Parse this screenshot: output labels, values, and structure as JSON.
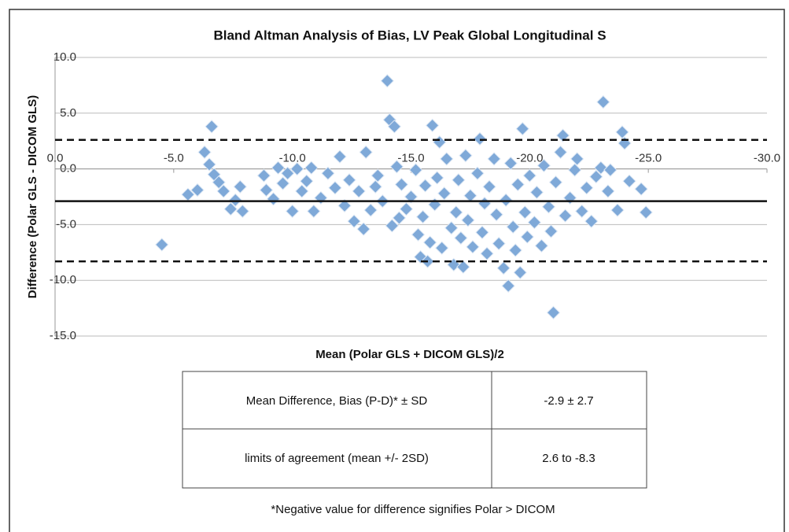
{
  "chart_data": {
    "type": "scatter",
    "title": "Bland Altman Analysis of Bias, LV Peak Global Longitudinal S",
    "x_label": "Mean (Polar GLS + DICOM GLS)/2",
    "y_label": "Difference (Polar GLS - DICOM GLS)",
    "color": "#7fa9d8",
    "xlim": [
      0,
      -30
    ],
    "ylim": [
      -15,
      10
    ],
    "xticks": [
      {
        "value": 0,
        "label": "0.0"
      },
      {
        "value": -5,
        "label": "-5.0"
      },
      {
        "value": -10,
        "label": "-10.0"
      },
      {
        "value": -15,
        "label": "-15.0"
      },
      {
        "value": -20,
        "label": "-20.0"
      },
      {
        "value": -25,
        "label": "-25.0"
      },
      {
        "value": -30,
        "label": "-30.0"
      }
    ],
    "yticks": [
      {
        "value": -15,
        "label": "-15.0"
      },
      {
        "value": -10,
        "label": "-10.0"
      },
      {
        "value": -5,
        "label": "-5.0"
      },
      {
        "value": 0,
        "label": "0.0"
      },
      {
        "value": 5,
        "label": "5.0"
      },
      {
        "value": 10,
        "label": "10.0"
      }
    ],
    "grid": true,
    "reference_lines": [
      {
        "value": -2.9,
        "style": "solid"
      },
      {
        "value": 2.6,
        "style": "dashed"
      },
      {
        "value": -8.3,
        "style": "dashed"
      }
    ],
    "x": [
      -4.5,
      -5.6,
      -6.0,
      -6.3,
      -6.5,
      -6.6,
      -6.7,
      -6.9,
      -7.1,
      -7.4,
      -7.6,
      -7.8,
      -7.9,
      -8.8,
      -8.9,
      -9.2,
      -9.4,
      -9.6,
      -9.8,
      -10.0,
      -10.2,
      -10.4,
      -10.6,
      -10.8,
      -10.9,
      -11.2,
      -11.5,
      -11.8,
      -12.0,
      -12.2,
      -12.4,
      -12.6,
      -12.8,
      -13.0,
      -13.1,
      -13.3,
      -13.5,
      -13.6,
      -13.8,
      -14.0,
      -14.1,
      -14.2,
      -14.3,
      -14.4,
      -14.5,
      -14.6,
      -14.8,
      -15.0,
      -15.2,
      -15.3,
      -15.4,
      -15.5,
      -15.6,
      -15.7,
      -15.8,
      -15.9,
      -16.0,
      -16.1,
      -16.2,
      -16.3,
      -16.4,
      -16.5,
      -16.7,
      -16.8,
      -16.9,
      -17.0,
      -17.1,
      -17.2,
      -17.3,
      -17.4,
      -17.5,
      -17.6,
      -17.8,
      -17.9,
      -18.0,
      -18.1,
      -18.2,
      -18.3,
      -18.5,
      -18.6,
      -18.7,
      -18.9,
      -19.0,
      -19.1,
      -19.2,
      -19.3,
      -19.4,
      -19.5,
      -19.6,
      -19.7,
      -19.8,
      -19.9,
      -20.0,
      -20.2,
      -20.3,
      -20.5,
      -20.6,
      -20.8,
      -20.9,
      -21.0,
      -21.1,
      -21.3,
      -21.4,
      -21.5,
      -21.7,
      -21.9,
      -22.0,
      -22.2,
      -22.4,
      -22.6,
      -22.8,
      -23.0,
      -23.1,
      -23.3,
      -23.4,
      -23.7,
      -23.9,
      -24.0,
      -24.2,
      -24.7,
      -24.9
    ],
    "values": [
      -6.8,
      -2.3,
      -1.9,
      1.5,
      0.4,
      3.8,
      -0.5,
      -1.2,
      -2.0,
      -3.6,
      -2.8,
      -1.6,
      -3.8,
      -0.6,
      -1.9,
      -2.7,
      0.1,
      -1.3,
      -0.4,
      -3.8,
      0.0,
      -2.0,
      -1.1,
      0.1,
      -3.8,
      -2.6,
      -0.4,
      -1.7,
      1.1,
      -3.3,
      -1.0,
      -4.7,
      -2.0,
      -5.4,
      1.5,
      -3.7,
      -1.6,
      -0.6,
      -2.9,
      7.9,
      4.4,
      -5.1,
      3.8,
      0.2,
      -4.4,
      -1.4,
      -3.6,
      -2.5,
      -0.1,
      -5.9,
      -7.9,
      -4.3,
      -1.5,
      -8.3,
      -6.6,
      3.9,
      -3.2,
      -0.8,
      2.4,
      -7.1,
      -2.2,
      0.9,
      -5.3,
      -8.6,
      -3.9,
      -1.0,
      -6.2,
      -8.8,
      1.2,
      -4.6,
      -2.4,
      -7.0,
      -0.4,
      2.7,
      -5.7,
      -3.1,
      -7.6,
      -1.6,
      0.9,
      -4.1,
      -6.7,
      -8.9,
      -2.8,
      -10.5,
      0.5,
      -5.2,
      -7.3,
      -1.4,
      -9.3,
      3.6,
      -3.9,
      -6.1,
      -0.6,
      -4.8,
      -2.1,
      -6.9,
      0.3,
      -3.4,
      -5.6,
      -12.9,
      -1.2,
      1.5,
      3.0,
      -4.2,
      -2.6,
      -0.1,
      0.9,
      -3.8,
      -1.7,
      -4.7,
      -0.7,
      0.1,
      6.0,
      -2.0,
      -0.1,
      -3.7,
      3.3,
      2.3,
      -1.1,
      -1.8,
      -3.9
    ]
  },
  "table": {
    "rows": [
      [
        "Mean Difference, Bias (P-D)* ±  SD",
        "-2.9 ±  2.7"
      ],
      [
        "limits of agreement  (mean +/- 2SD)",
        "2.6  to -8.3"
      ]
    ]
  },
  "footnote": "*Negative value for difference signifies  Polar > DICOM"
}
